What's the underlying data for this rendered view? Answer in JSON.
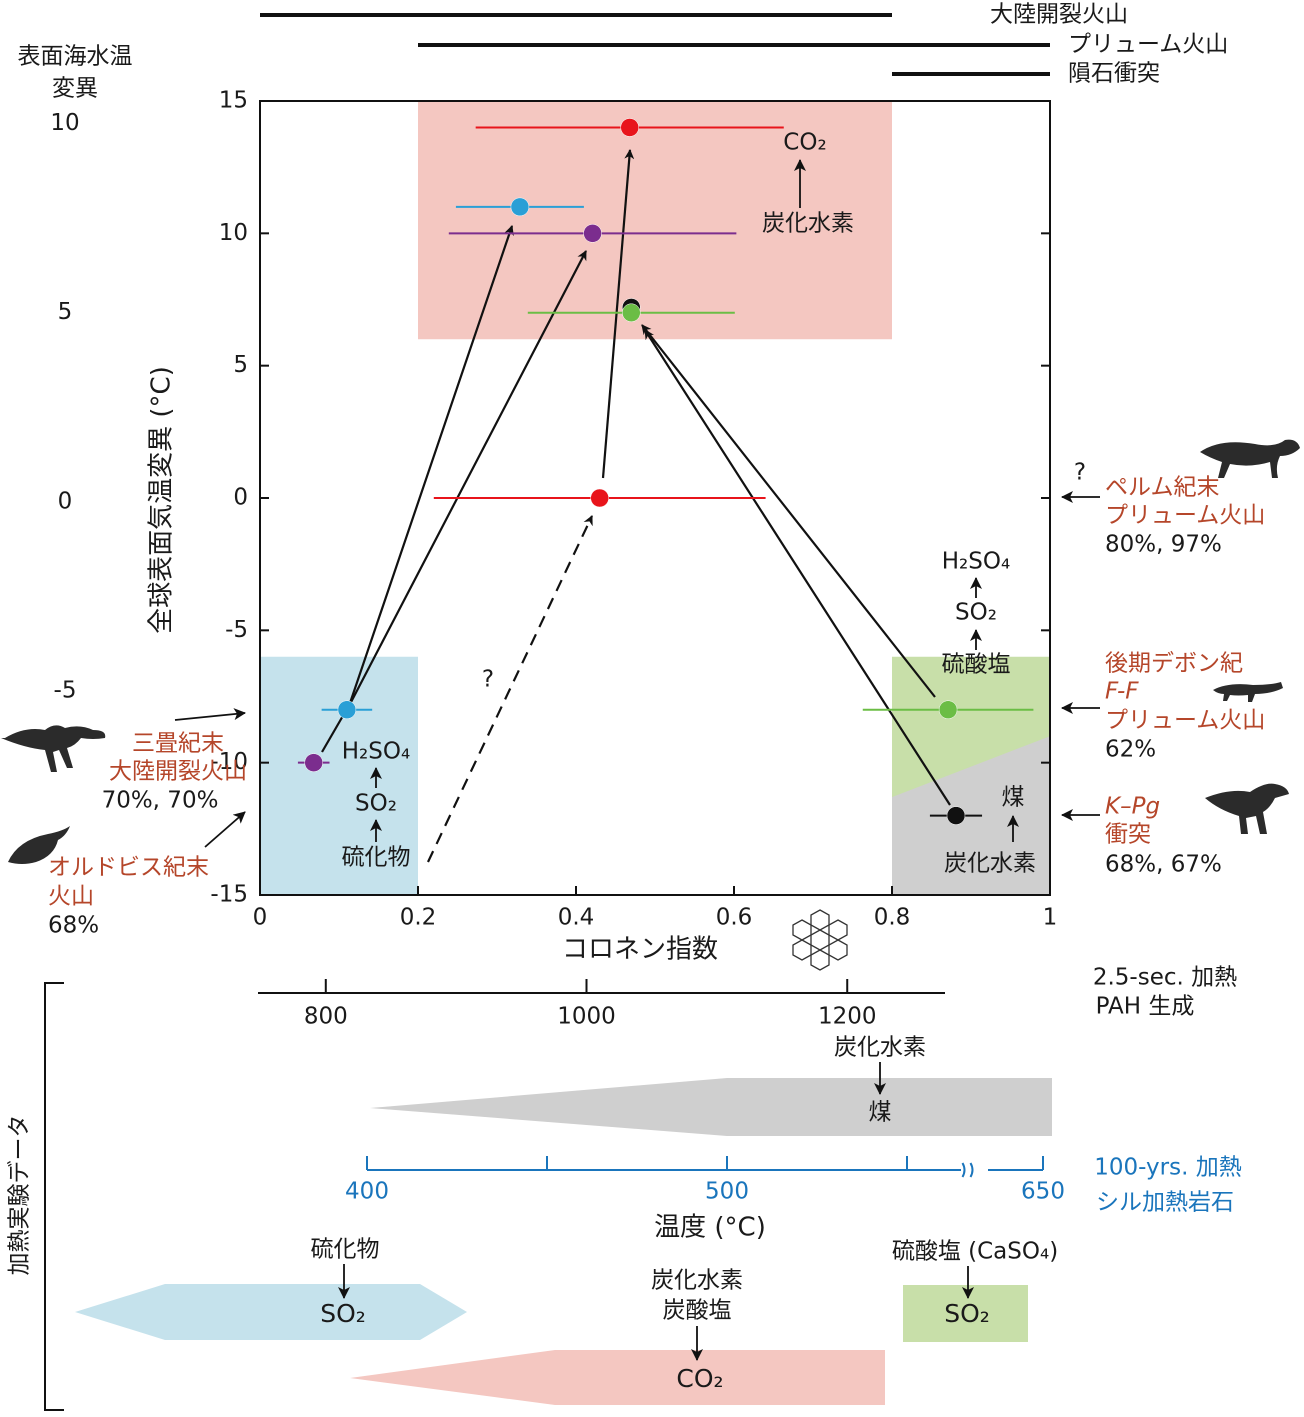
{
  "chart_data": {
    "type": "scatter",
    "xlabel": "コロネン指数",
    "ylabel": "全球表面気温変異 (°C)",
    "xlim": [
      0,
      1
    ],
    "xticks": [
      0,
      0.2,
      0.4,
      0.6,
      0.8,
      1
    ],
    "ylim": [
      -15,
      15
    ],
    "yticks": [
      -15,
      -10,
      -5,
      0,
      5,
      10,
      15
    ],
    "y2label": [
      "表面海水温",
      "変異"
    ],
    "y2lim": [
      -10.4,
      10.6
    ],
    "y2ticks": [
      -5,
      0,
      5,
      10
    ],
    "regions": [
      {
        "color": "#f4c7c1",
        "polygon": [
          [
            0.2,
            6
          ],
          [
            0.8,
            6
          ],
          [
            0.8,
            15
          ],
          [
            0.2,
            15
          ]
        ]
      },
      {
        "color": "#c5e2ec",
        "polygon": [
          [
            0,
            -15
          ],
          [
            0.2,
            -15
          ],
          [
            0.2,
            -6
          ],
          [
            0,
            -6
          ]
        ]
      },
      {
        "color": "#c8dfa9",
        "polygon": [
          [
            0.8,
            -15
          ],
          [
            1,
            -15
          ],
          [
            1,
            -6
          ],
          [
            0.8,
            -6
          ]
        ]
      },
      {
        "color": "#cfcfcf",
        "polygon": [
          [
            0.8,
            -15
          ],
          [
            1,
            -15
          ],
          [
            1,
            -9
          ],
          [
            0.8,
            -11.3
          ]
        ]
      }
    ],
    "points": [
      {
        "x": 0.468,
        "y": 14,
        "xerr": 0.195,
        "color": "#e8141b"
      },
      {
        "x": 0.329,
        "y": 11,
        "xerr": 0.081,
        "color": "#2a9fd6"
      },
      {
        "x": 0.421,
        "y": 10,
        "xerr": 0.182,
        "color": "#7b2d8e"
      },
      {
        "x": 0.47,
        "y": 7.2,
        "color": "#111111"
      },
      {
        "x": 0.47,
        "y": 7,
        "xerr": 0.131,
        "color": "#6bbd45"
      },
      {
        "x": 0.43,
        "y": 0,
        "xerr": 0.21,
        "color": "#e8141b"
      },
      {
        "x": 0.11,
        "y": -8,
        "xerr": 0.032,
        "color": "#2a9fd6"
      },
      {
        "x": 0.068,
        "y": -10,
        "xerr": 0.02,
        "color": "#7b2d8e"
      },
      {
        "x": 0.871,
        "y": -8,
        "xerr": 0.108,
        "color": "#6bbd45"
      },
      {
        "x": 0.881,
        "y": -12,
        "xerr": 0.033,
        "color": "#111111"
      }
    ],
    "ranges": [
      {
        "label": "大陸開裂火山",
        "x": [
          0,
          0.8
        ]
      },
      {
        "label": "プリューム火山",
        "x": [
          0.2,
          1
        ]
      },
      {
        "label": "隕石衝突",
        "x": [
          0.8,
          1
        ]
      }
    ],
    "annotations": {
      "co2_top": "CO₂",
      "hc_top": "炭化水素",
      "h2so4_left": "H₂SO₄",
      "so2_left": "SO₂",
      "sulfide_left": "硫化物",
      "h2so4_right": "H₂SO₄",
      "so2_right": "SO₂",
      "sulfate_right": "硫酸塩",
      "soot_right": "煤",
      "hc_right": "炭化水素",
      "q_dashed": "?",
      "q_permian": "?"
    },
    "events": {
      "permian": [
        "ペルム紀末",
        "プリューム火山",
        "80%, 97%"
      ],
      "devonian": [
        "後期デボン紀",
        "F-F",
        "プリューム火山",
        "62%"
      ],
      "kpg": [
        "K–Pg",
        "衝突",
        "68%, 67%"
      ],
      "triassic": [
        "三畳紀末",
        "大陸開裂火山",
        "70%, 70%"
      ],
      "ordovician": [
        "オルドビス紀末",
        "火山",
        "68%"
      ]
    }
  },
  "pah_axis": {
    "label": [
      "2.5-sec. 加熱",
      "PAH 生成"
    ],
    "xlim": [
      748,
      1275
    ],
    "xticks": [
      800,
      1000,
      1200
    ]
  },
  "sill_axis": {
    "label": [
      "100-yrs. 加熱",
      "シル加熱岩石"
    ],
    "xlabel": "温度 (°C)",
    "color": "#1a75bc",
    "xlim": [
      400,
      650
    ],
    "axis_break": [
      560,
      640
    ],
    "xticks": [
      400,
      500,
      650
    ],
    "xminorticks": [
      450,
      550
    ]
  },
  "heating_data": {
    "title": "加熱実験データ",
    "soot": {
      "top": "炭化水素",
      "bottom": "煤"
    },
    "sulfide": {
      "top": "硫化物",
      "bottom": "SO₂"
    },
    "sulfate": {
      "top": "硫酸塩 (CaSO₄)",
      "bottom": "SO₂"
    },
    "co2": {
      "top": [
        "炭化水素",
        "炭酸塩"
      ],
      "bottom": "CO₂"
    }
  }
}
